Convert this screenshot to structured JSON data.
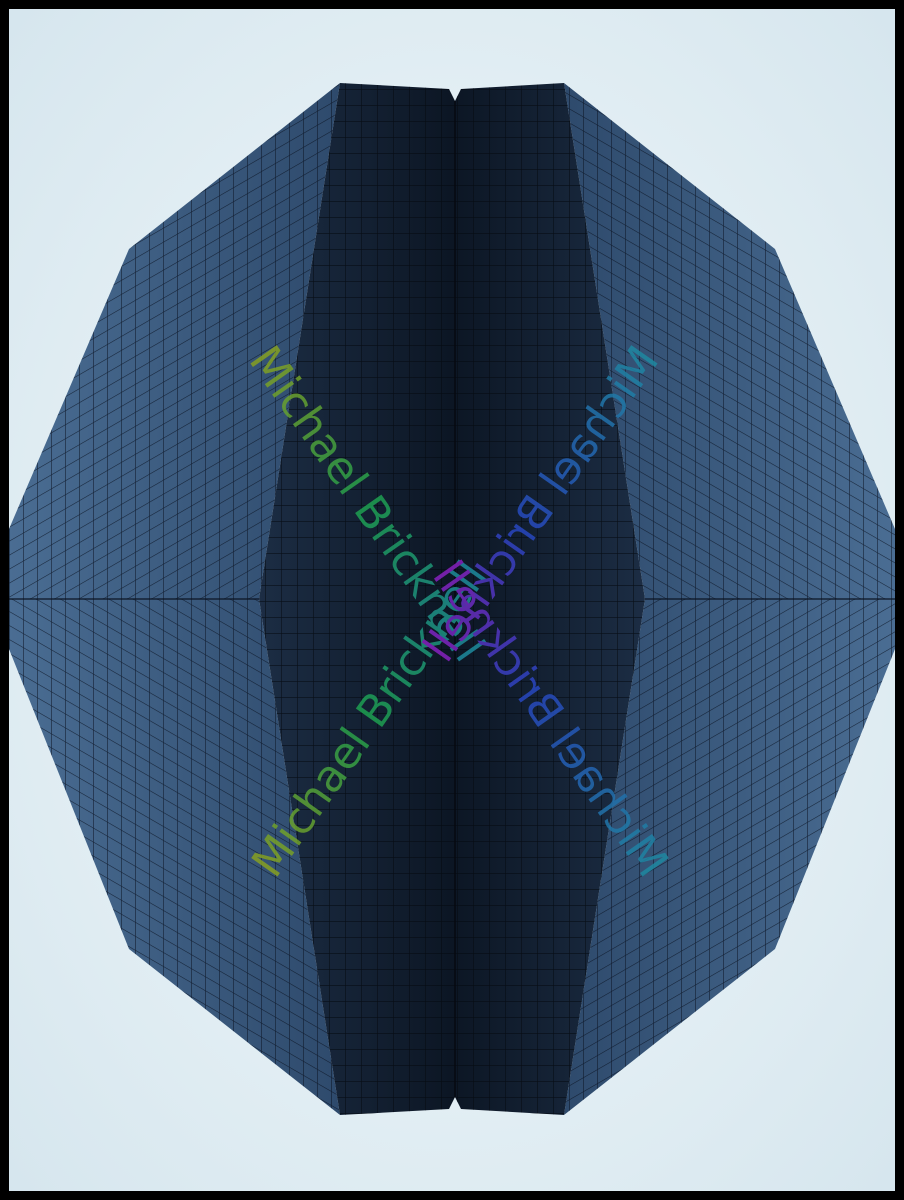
{
  "image": {
    "subject": "kaleidoscope-building-facade",
    "colors": {
      "border": "#000000",
      "sky_center": "#f4fafc",
      "sky_edge": "#d6e6ee",
      "facade_light": "#4a6d93",
      "facade_mid": "#2e4a6c",
      "facade_dark": "#0c1624",
      "grid_line": "#0a1220"
    }
  },
  "watermark": {
    "line_1": "Michael Bricknell",
    "line_2": "Michael Bricknell",
    "line_3": "Michael Bricknell",
    "line_4": "Michael Bricknell"
  }
}
